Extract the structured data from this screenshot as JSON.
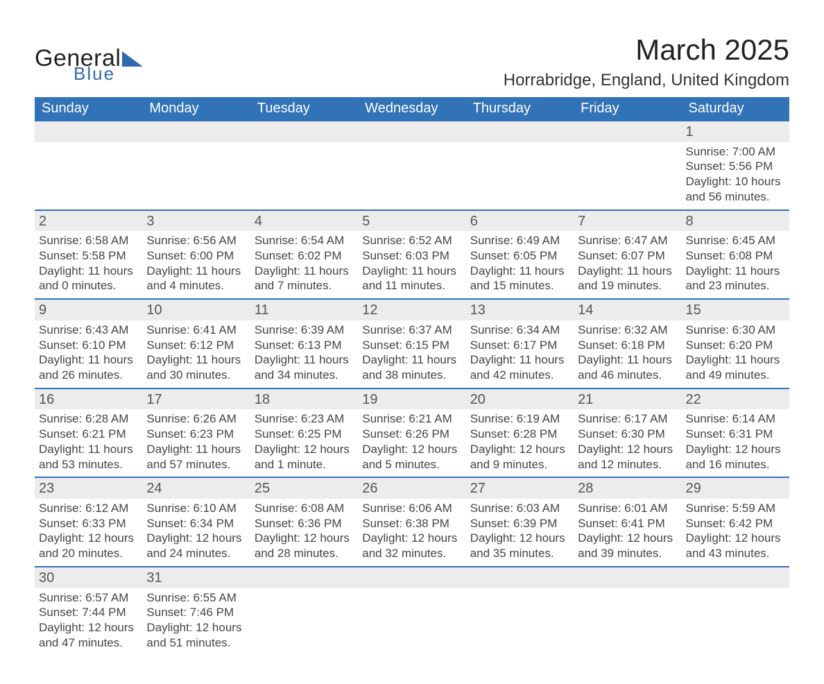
{
  "header": {
    "logo_line1": "General",
    "logo_line2": "Blue",
    "logo_shape_color": "#2f6aaf",
    "title": "March 2025",
    "location": "Horrabridge, England, United Kingdom"
  },
  "styling": {
    "header_bg": "#3273b8",
    "header_fg": "#ffffff",
    "daynum_bg": "#ececec",
    "row_separator": "#3273b8",
    "body_fg": "#444444",
    "page_bg": "#ffffff",
    "title_fontsize": 42,
    "location_fontsize": 24,
    "dayhdr_fontsize": 20,
    "cell_fontsize": 17
  },
  "calendar": {
    "type": "table",
    "columns": [
      "Sunday",
      "Monday",
      "Tuesday",
      "Wednesday",
      "Thursday",
      "Friday",
      "Saturday"
    ],
    "weeks": [
      [
        null,
        null,
        null,
        null,
        null,
        null,
        {
          "n": "1",
          "sunrise": "Sunrise: 7:00 AM",
          "sunset": "Sunset: 5:56 PM",
          "d1": "Daylight: 10 hours",
          "d2": "and 56 minutes."
        }
      ],
      [
        {
          "n": "2",
          "sunrise": "Sunrise: 6:58 AM",
          "sunset": "Sunset: 5:58 PM",
          "d1": "Daylight: 11 hours",
          "d2": "and 0 minutes."
        },
        {
          "n": "3",
          "sunrise": "Sunrise: 6:56 AM",
          "sunset": "Sunset: 6:00 PM",
          "d1": "Daylight: 11 hours",
          "d2": "and 4 minutes."
        },
        {
          "n": "4",
          "sunrise": "Sunrise: 6:54 AM",
          "sunset": "Sunset: 6:02 PM",
          "d1": "Daylight: 11 hours",
          "d2": "and 7 minutes."
        },
        {
          "n": "5",
          "sunrise": "Sunrise: 6:52 AM",
          "sunset": "Sunset: 6:03 PM",
          "d1": "Daylight: 11 hours",
          "d2": "and 11 minutes."
        },
        {
          "n": "6",
          "sunrise": "Sunrise: 6:49 AM",
          "sunset": "Sunset: 6:05 PM",
          "d1": "Daylight: 11 hours",
          "d2": "and 15 minutes."
        },
        {
          "n": "7",
          "sunrise": "Sunrise: 6:47 AM",
          "sunset": "Sunset: 6:07 PM",
          "d1": "Daylight: 11 hours",
          "d2": "and 19 minutes."
        },
        {
          "n": "8",
          "sunrise": "Sunrise: 6:45 AM",
          "sunset": "Sunset: 6:08 PM",
          "d1": "Daylight: 11 hours",
          "d2": "and 23 minutes."
        }
      ],
      [
        {
          "n": "9",
          "sunrise": "Sunrise: 6:43 AM",
          "sunset": "Sunset: 6:10 PM",
          "d1": "Daylight: 11 hours",
          "d2": "and 26 minutes."
        },
        {
          "n": "10",
          "sunrise": "Sunrise: 6:41 AM",
          "sunset": "Sunset: 6:12 PM",
          "d1": "Daylight: 11 hours",
          "d2": "and 30 minutes."
        },
        {
          "n": "11",
          "sunrise": "Sunrise: 6:39 AM",
          "sunset": "Sunset: 6:13 PM",
          "d1": "Daylight: 11 hours",
          "d2": "and 34 minutes."
        },
        {
          "n": "12",
          "sunrise": "Sunrise: 6:37 AM",
          "sunset": "Sunset: 6:15 PM",
          "d1": "Daylight: 11 hours",
          "d2": "and 38 minutes."
        },
        {
          "n": "13",
          "sunrise": "Sunrise: 6:34 AM",
          "sunset": "Sunset: 6:17 PM",
          "d1": "Daylight: 11 hours",
          "d2": "and 42 minutes."
        },
        {
          "n": "14",
          "sunrise": "Sunrise: 6:32 AM",
          "sunset": "Sunset: 6:18 PM",
          "d1": "Daylight: 11 hours",
          "d2": "and 46 minutes."
        },
        {
          "n": "15",
          "sunrise": "Sunrise: 6:30 AM",
          "sunset": "Sunset: 6:20 PM",
          "d1": "Daylight: 11 hours",
          "d2": "and 49 minutes."
        }
      ],
      [
        {
          "n": "16",
          "sunrise": "Sunrise: 6:28 AM",
          "sunset": "Sunset: 6:21 PM",
          "d1": "Daylight: 11 hours",
          "d2": "and 53 minutes."
        },
        {
          "n": "17",
          "sunrise": "Sunrise: 6:26 AM",
          "sunset": "Sunset: 6:23 PM",
          "d1": "Daylight: 11 hours",
          "d2": "and 57 minutes."
        },
        {
          "n": "18",
          "sunrise": "Sunrise: 6:23 AM",
          "sunset": "Sunset: 6:25 PM",
          "d1": "Daylight: 12 hours",
          "d2": "and 1 minute."
        },
        {
          "n": "19",
          "sunrise": "Sunrise: 6:21 AM",
          "sunset": "Sunset: 6:26 PM",
          "d1": "Daylight: 12 hours",
          "d2": "and 5 minutes."
        },
        {
          "n": "20",
          "sunrise": "Sunrise: 6:19 AM",
          "sunset": "Sunset: 6:28 PM",
          "d1": "Daylight: 12 hours",
          "d2": "and 9 minutes."
        },
        {
          "n": "21",
          "sunrise": "Sunrise: 6:17 AM",
          "sunset": "Sunset: 6:30 PM",
          "d1": "Daylight: 12 hours",
          "d2": "and 12 minutes."
        },
        {
          "n": "22",
          "sunrise": "Sunrise: 6:14 AM",
          "sunset": "Sunset: 6:31 PM",
          "d1": "Daylight: 12 hours",
          "d2": "and 16 minutes."
        }
      ],
      [
        {
          "n": "23",
          "sunrise": "Sunrise: 6:12 AM",
          "sunset": "Sunset: 6:33 PM",
          "d1": "Daylight: 12 hours",
          "d2": "and 20 minutes."
        },
        {
          "n": "24",
          "sunrise": "Sunrise: 6:10 AM",
          "sunset": "Sunset: 6:34 PM",
          "d1": "Daylight: 12 hours",
          "d2": "and 24 minutes."
        },
        {
          "n": "25",
          "sunrise": "Sunrise: 6:08 AM",
          "sunset": "Sunset: 6:36 PM",
          "d1": "Daylight: 12 hours",
          "d2": "and 28 minutes."
        },
        {
          "n": "26",
          "sunrise": "Sunrise: 6:06 AM",
          "sunset": "Sunset: 6:38 PM",
          "d1": "Daylight: 12 hours",
          "d2": "and 32 minutes."
        },
        {
          "n": "27",
          "sunrise": "Sunrise: 6:03 AM",
          "sunset": "Sunset: 6:39 PM",
          "d1": "Daylight: 12 hours",
          "d2": "and 35 minutes."
        },
        {
          "n": "28",
          "sunrise": "Sunrise: 6:01 AM",
          "sunset": "Sunset: 6:41 PM",
          "d1": "Daylight: 12 hours",
          "d2": "and 39 minutes."
        },
        {
          "n": "29",
          "sunrise": "Sunrise: 5:59 AM",
          "sunset": "Sunset: 6:42 PM",
          "d1": "Daylight: 12 hours",
          "d2": "and 43 minutes."
        }
      ],
      [
        {
          "n": "30",
          "sunrise": "Sunrise: 6:57 AM",
          "sunset": "Sunset: 7:44 PM",
          "d1": "Daylight: 12 hours",
          "d2": "and 47 minutes."
        },
        {
          "n": "31",
          "sunrise": "Sunrise: 6:55 AM",
          "sunset": "Sunset: 7:46 PM",
          "d1": "Daylight: 12 hours",
          "d2": "and 51 minutes."
        },
        null,
        null,
        null,
        null,
        null
      ]
    ]
  }
}
